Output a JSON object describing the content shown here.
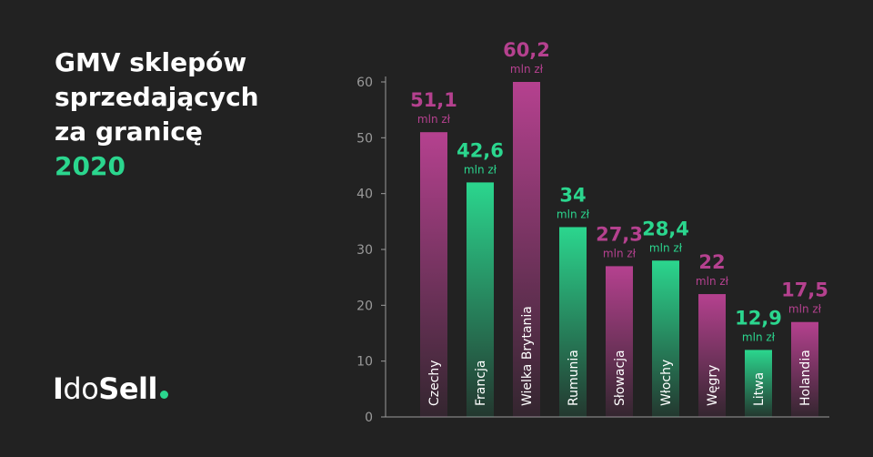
{
  "heading": {
    "line1": "GMV sklepów",
    "line2": "sprzedających",
    "line3": "za granicę",
    "year": "2020"
  },
  "logo": {
    "text_part1": "I",
    "text_part2": "do",
    "text_part3": "Sell"
  },
  "colors": {
    "background": "#222222",
    "magenta": "#b5418f",
    "green": "#2bd68e",
    "axis": "#9a9a9a"
  },
  "chart_data": {
    "type": "bar",
    "title": "GMV sklepów sprzedających za granicę 2020",
    "categories": [
      "Czechy",
      "Francja",
      "Wielka Brytania",
      "Rumunia",
      "Słowacja",
      "Włochy",
      "Węgry",
      "Litwa",
      "Holandia"
    ],
    "values": [
      51.1,
      42.6,
      60.2,
      34,
      27.3,
      28.4,
      22,
      12.9,
      17.5
    ],
    "bar_heights": [
      51,
      42,
      60,
      34,
      27,
      28,
      22,
      12,
      17
    ],
    "value_labels": [
      "51,1",
      "42,6",
      "60,2",
      "34",
      "27,3",
      "28,4",
      "22",
      "12,9",
      "17,5"
    ],
    "unit": "mln zł",
    "bar_colors": [
      "magenta",
      "green",
      "magenta",
      "green",
      "magenta",
      "green",
      "magenta",
      "green",
      "magenta"
    ],
    "yticks": [
      0,
      10,
      20,
      30,
      40,
      50,
      60
    ],
    "ylim": [
      0,
      60
    ],
    "xlabel": "",
    "ylabel": "",
    "grid": false
  }
}
